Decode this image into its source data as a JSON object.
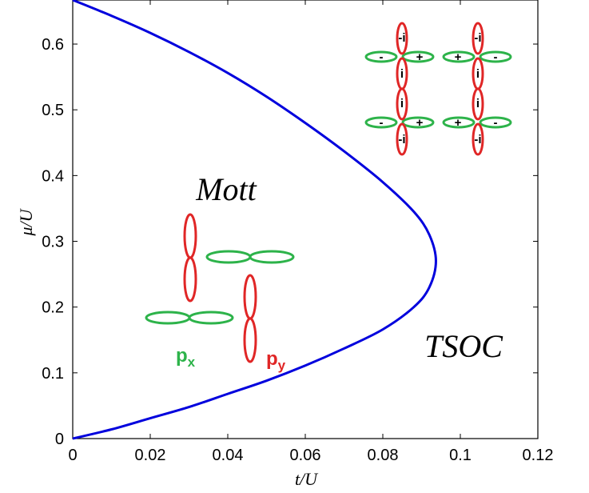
{
  "chart_data": {
    "type": "line",
    "title": "",
    "xlabel": "t/U",
    "ylabel": "μ/U",
    "xlim": [
      0,
      0.12
    ],
    "ylim": [
      0,
      0.667
    ],
    "x_ticks": [
      "0",
      "0.02",
      "0.04",
      "0.06",
      "0.08",
      "0.1",
      "0.12"
    ],
    "y_ticks": [
      "0",
      "0.1",
      "0.2",
      "0.3",
      "0.4",
      "0.5",
      "0.6"
    ],
    "grid": false,
    "series": [
      {
        "color": "#0000dd",
        "points": [
          {
            "x": 0.0,
            "y": 0.0
          },
          {
            "x": 0.01,
            "y": 0.014
          },
          {
            "x": 0.02,
            "y": 0.031
          },
          {
            "x": 0.03,
            "y": 0.048
          },
          {
            "x": 0.04,
            "y": 0.068
          },
          {
            "x": 0.05,
            "y": 0.088
          },
          {
            "x": 0.06,
            "y": 0.111
          },
          {
            "x": 0.07,
            "y": 0.137
          },
          {
            "x": 0.08,
            "y": 0.166
          },
          {
            "x": 0.088,
            "y": 0.2
          },
          {
            "x": 0.092,
            "y": 0.23
          },
          {
            "x": 0.0937,
            "y": 0.27
          },
          {
            "x": 0.092,
            "y": 0.31
          },
          {
            "x": 0.088,
            "y": 0.345
          },
          {
            "x": 0.08,
            "y": 0.39
          },
          {
            "x": 0.07,
            "y": 0.437
          },
          {
            "x": 0.06,
            "y": 0.48
          },
          {
            "x": 0.05,
            "y": 0.52
          },
          {
            "x": 0.04,
            "y": 0.556
          },
          {
            "x": 0.03,
            "y": 0.588
          },
          {
            "x": 0.02,
            "y": 0.617
          },
          {
            "x": 0.01,
            "y": 0.643
          },
          {
            "x": 0.0,
            "y": 0.667
          }
        ]
      }
    ],
    "annotations": {
      "mott": "Mott",
      "tsoc": "TSOC",
      "px_main": "p",
      "px_sub": "x",
      "py_main": "p",
      "py_sub": "y"
    },
    "orbital_colors": {
      "px": "#2db34a",
      "py": "#e02626"
    }
  }
}
